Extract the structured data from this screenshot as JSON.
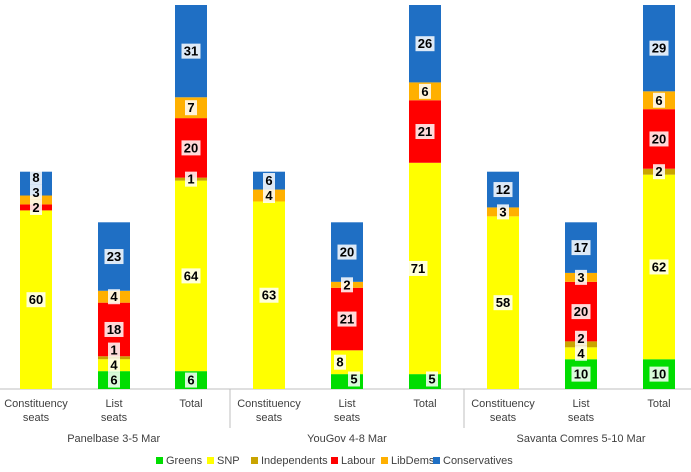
{
  "chart_data": {
    "type": "bar",
    "stacked": true,
    "title": "",
    "xlabel": "",
    "ylabel": "",
    "ylim": [
      0,
      129
    ],
    "legend_position": "bottom",
    "colors": {
      "Greens": "#00dd00",
      "SNP": "#ffff00",
      "Independents": "#c9a400",
      "Labour": "#ff0000",
      "LibDems": "#ffb000",
      "Conservatives": "#1f6fc4"
    },
    "series_order": [
      "Greens",
      "SNP",
      "Independents",
      "Labour",
      "LibDems",
      "Conservatives"
    ],
    "groups": [
      {
        "name": "Panelbase 3-5 Mar",
        "bars": [
          {
            "category": "Constituency seats",
            "values": {
              "Greens": 0,
              "SNP": 60,
              "Independents": 0,
              "Labour": 2,
              "LibDems": 3,
              "Conservatives": 8
            }
          },
          {
            "category": "List seats",
            "values": {
              "Greens": 6,
              "SNP": 4,
              "Independents": 1,
              "Labour": 18,
              "LibDems": 4,
              "Conservatives": 23
            }
          },
          {
            "category": "Total",
            "values": {
              "Greens": 6,
              "SNP": 64,
              "Independents": 1,
              "Labour": 20,
              "LibDems": 7,
              "Conservatives": 31
            }
          }
        ]
      },
      {
        "name": "YouGov 4-8 Mar",
        "bars": [
          {
            "category": "Constituency seats",
            "values": {
              "Greens": 0,
              "SNP": 63,
              "Independents": 0,
              "Labour": 0,
              "LibDems": 4,
              "Conservatives": 6
            }
          },
          {
            "category": "List seats",
            "values": {
              "Greens": 5,
              "SNP": 8,
              "Independents": 0,
              "Labour": 21,
              "LibDems": 2,
              "Conservatives": 20
            }
          },
          {
            "category": "Total",
            "values": {
              "Greens": 5,
              "SNP": 71,
              "Independents": 0,
              "Labour": 21,
              "LibDems": 6,
              "Conservatives": 26
            }
          }
        ]
      },
      {
        "name": "Savanta Comres 5-10 Mar",
        "bars": [
          {
            "category": "Constituency seats",
            "values": {
              "Greens": 0,
              "SNP": 58,
              "Independents": 0,
              "Labour": 0,
              "LibDems": 3,
              "Conservatives": 12
            }
          },
          {
            "category": "List seats",
            "values": {
              "Greens": 10,
              "SNP": 4,
              "Independents": 2,
              "Labour": 20,
              "LibDems": 3,
              "Conservatives": 17
            }
          },
          {
            "category": "Total",
            "values": {
              "Greens": 10,
              "SNP": 62,
              "Independents": 2,
              "Labour": 20,
              "LibDems": 6,
              "Conservatives": 29
            }
          }
        ]
      }
    ]
  }
}
